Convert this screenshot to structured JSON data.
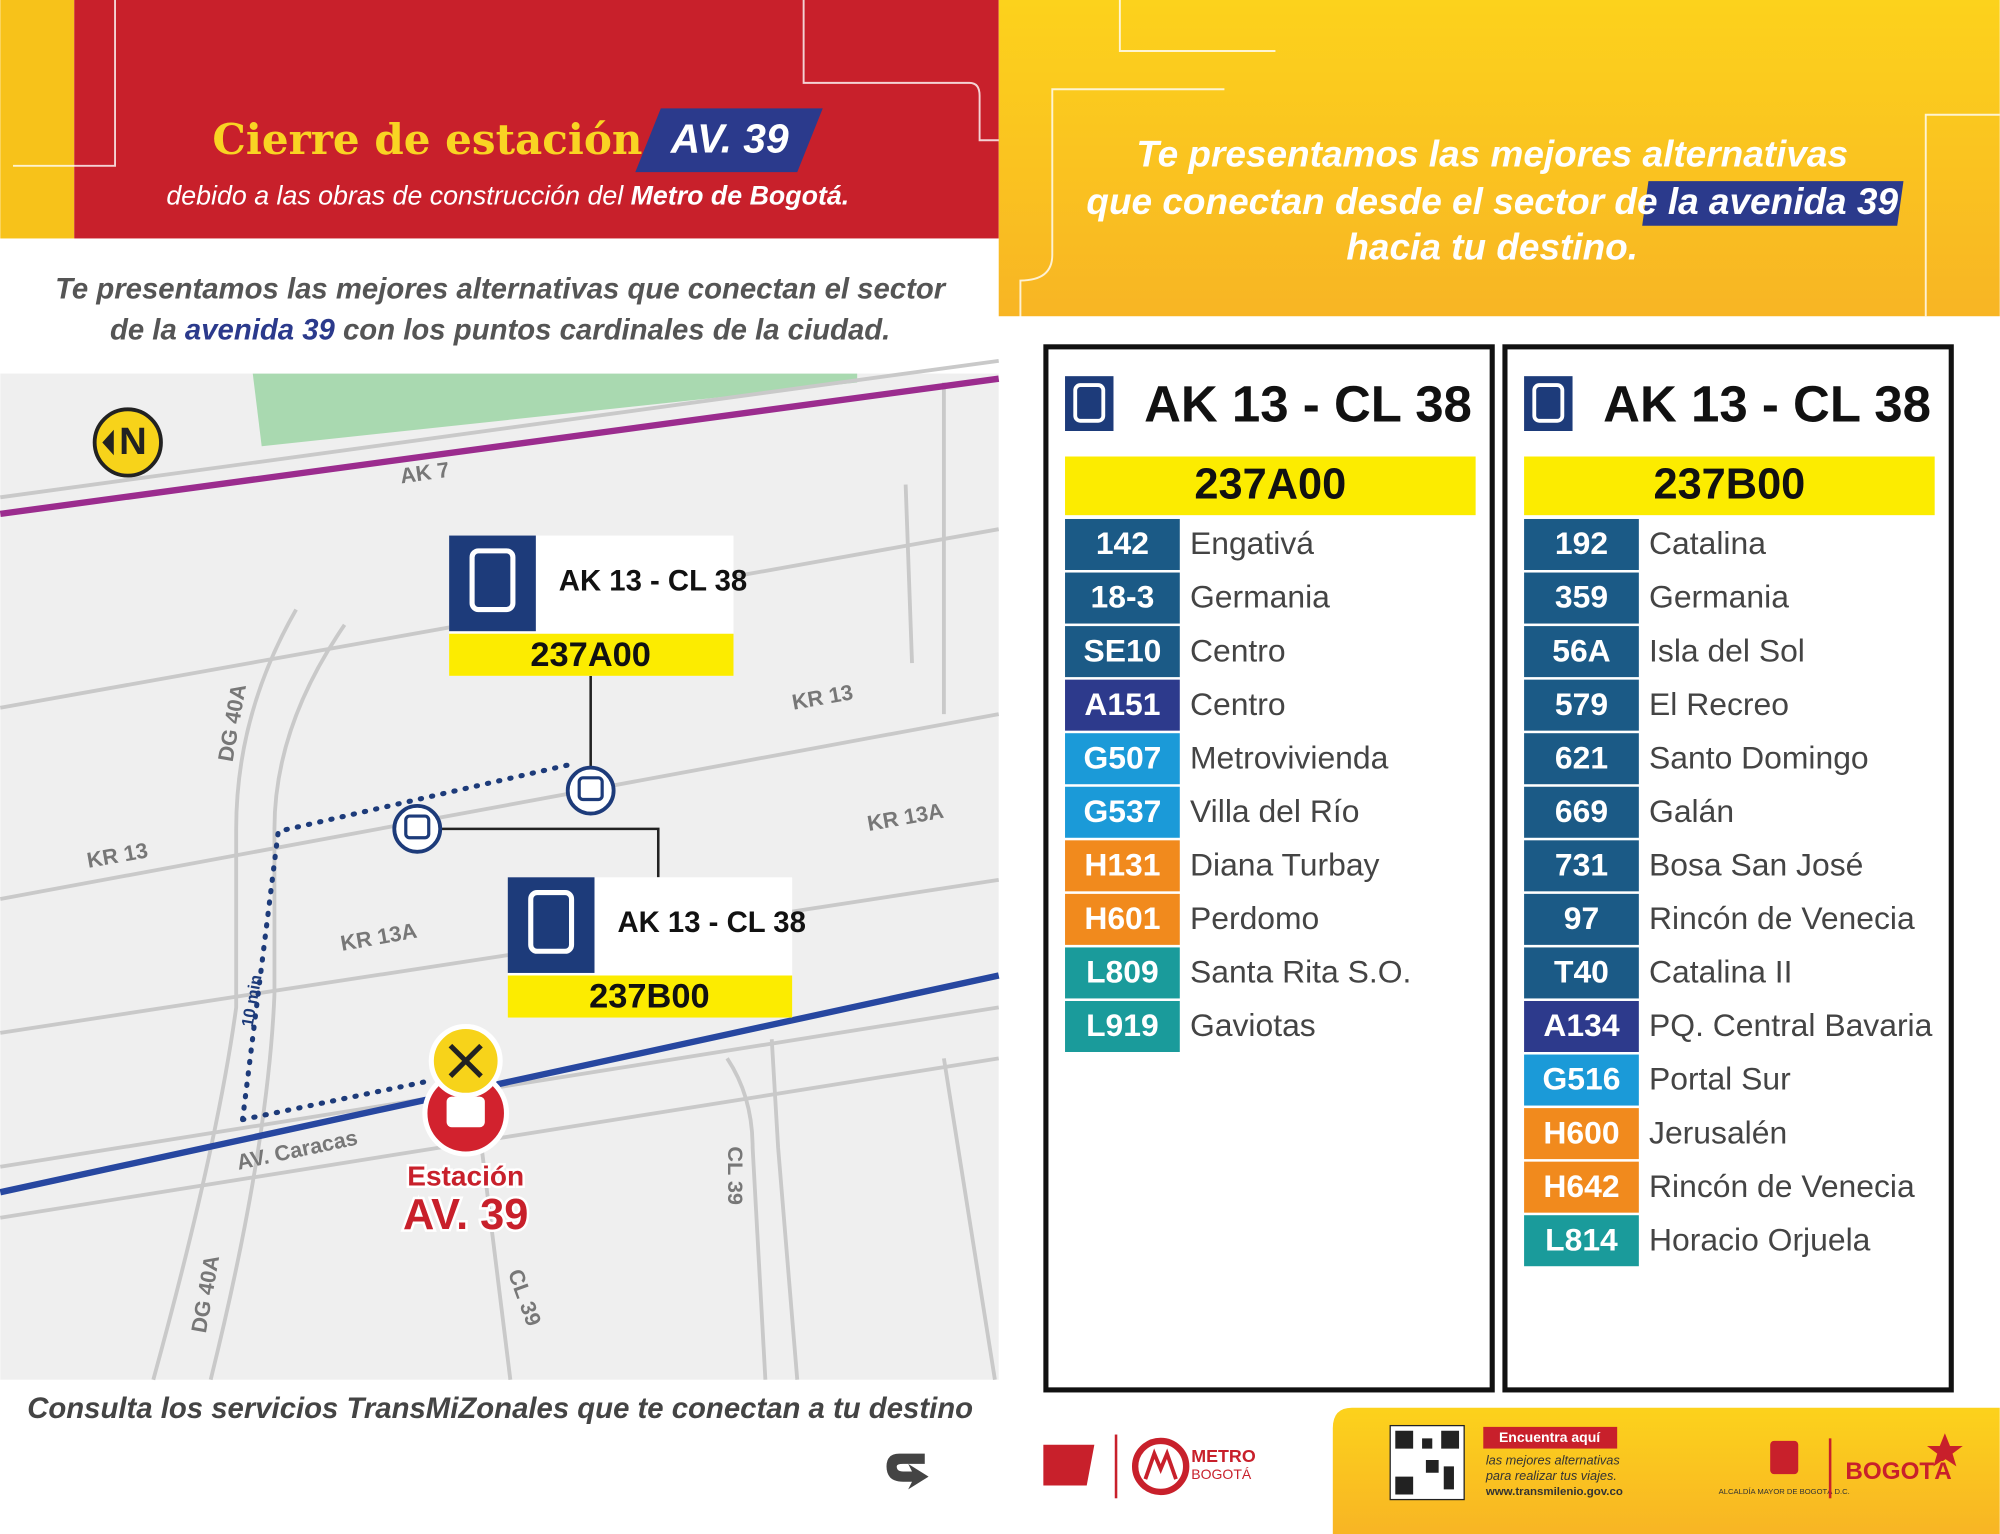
{
  "header": {
    "title": "Cierre de estación",
    "station": "AV. 39",
    "subtitle_prefix": "debido a las obras de construcción del",
    "subtitle_emphasis": "Metro de Bogotá."
  },
  "intro": {
    "line1": "Te presentamos las mejores alternativas que conectan el sector",
    "line2_prefix": "de la",
    "line2_emphasis": "avenida 39",
    "line2_suffix": "con los puntos cardinales de la ciudad."
  },
  "map": {
    "north": "N",
    "street_labels": [
      "AK 7",
      "KR 13",
      "KR 13",
      "KR 13A",
      "KR 13A",
      "DG 40A",
      "DG 40A",
      "AV. Caracas",
      "CL 39",
      "CL 39"
    ],
    "stops": [
      {
        "name": "AK 13 - CL 38",
        "route": "237A00"
      },
      {
        "name": "AK 13 - CL 38",
        "route": "237B00"
      }
    ],
    "walk_time": "10 min",
    "station_label": "Estación",
    "station_name": "AV. 39"
  },
  "footer_note": "Consulta los servicios TransMiZonales que te conectan a tu destino",
  "right_header": {
    "line1": "Te presentamos las mejores alternativas",
    "line2_prefix": "que conectan desde el sector de",
    "line2_emphasis": "la avenida 39",
    "line3": "hacia tu destino."
  },
  "panels": [
    {
      "stop": "AK 13 - CL 38",
      "route": "237A00",
      "services": [
        {
          "code": "142",
          "destination": "Engativá",
          "color": "#1b5a86"
        },
        {
          "code": "18-3",
          "destination": "Germania",
          "color": "#1b5a86"
        },
        {
          "code": "SE10",
          "destination": "Centro",
          "color": "#1b5a86"
        },
        {
          "code": "A151",
          "destination": "Centro",
          "color": "#2d3a8c"
        },
        {
          "code": "G507",
          "destination": "Metrovivienda",
          "color": "#1b9ad8"
        },
        {
          "code": "G537",
          "destination": "Villa del Río",
          "color": "#1b9ad8"
        },
        {
          "code": "H131",
          "destination": "Diana Turbay",
          "color": "#f18a1d"
        },
        {
          "code": "H601",
          "destination": "Perdomo",
          "color": "#f18a1d"
        },
        {
          "code": "L809",
          "destination": "Santa Rita S.O.",
          "color": "#1a9b9b"
        },
        {
          "code": "L919",
          "destination": "Gaviotas",
          "color": "#1a9b9b"
        }
      ]
    },
    {
      "stop": "AK 13 - CL 38",
      "route": "237B00",
      "services": [
        {
          "code": "192",
          "destination": "Catalina",
          "color": "#1b5a86"
        },
        {
          "code": "359",
          "destination": "Germania",
          "color": "#1b5a86"
        },
        {
          "code": "56A",
          "destination": "Isla del Sol",
          "color": "#1b5a86"
        },
        {
          "code": "579",
          "destination": "El Recreo",
          "color": "#1b5a86"
        },
        {
          "code": "621",
          "destination": "Santo Domingo",
          "color": "#1b5a86"
        },
        {
          "code": "669",
          "destination": "Galán",
          "color": "#1b5a86"
        },
        {
          "code": "731",
          "destination": "Bosa San José",
          "color": "#1b5a86"
        },
        {
          "code": "97",
          "destination": "Rincón de Venecia",
          "color": "#1b5a86"
        },
        {
          "code": "T40",
          "destination": "Catalina II",
          "color": "#1b5a86"
        },
        {
          "code": "A134",
          "destination": "PQ. Central Bavaria",
          "color": "#2d3a8c"
        },
        {
          "code": "G516",
          "destination": "Portal Sur",
          "color": "#1b9ad8"
        },
        {
          "code": "H600",
          "destination": "Jerusalén",
          "color": "#f18a1d"
        },
        {
          "code": "H642",
          "destination": "Rincón de Venecia",
          "color": "#f18a1d"
        },
        {
          "code": "L814",
          "destination": "Horacio Orjuela",
          "color": "#1a9b9b"
        }
      ]
    }
  ],
  "footer": {
    "metro_logo": "METRO",
    "metro_sub": "BOGOTÁ",
    "info_title": "Encuentra aquí",
    "info_lines": [
      "las mejores alternativas",
      "para realizar tus viajes."
    ],
    "url": "www.transmilenio.gov.co",
    "bogota": "BOGOTÁ",
    "alcaldia": "ALCALDÍA MAYOR DE BOGOTÁ D.C."
  }
}
